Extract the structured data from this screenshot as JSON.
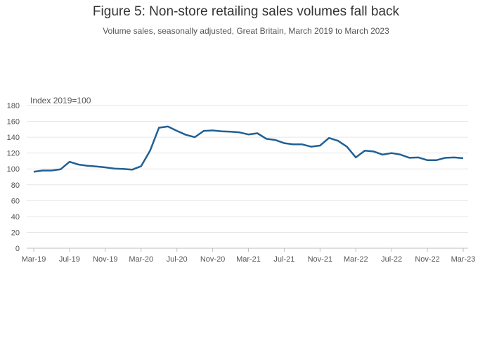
{
  "chart_data": {
    "type": "line",
    "title": "Figure 5: Non-store retailing sales volumes fall back",
    "subtitle": "Volume sales, seasonally adjusted, Great Britain, March 2019 to March 2023",
    "ylabel": "Index 2019=100",
    "xlabel": "",
    "ylim": [
      0,
      180
    ],
    "yticks": [
      0,
      20,
      40,
      60,
      80,
      100,
      120,
      140,
      160,
      180
    ],
    "x_tick_labels": [
      "Mar-19",
      "Jul-19",
      "Nov-19",
      "Mar-20",
      "Jul-20",
      "Nov-20",
      "Mar-21",
      "Jul-21",
      "Nov-21",
      "Mar-22",
      "Jul-22",
      "Nov-22",
      "Mar-23"
    ],
    "grid": true,
    "line_color": "#206095",
    "x": [
      "Mar-19",
      "Apr-19",
      "May-19",
      "Jun-19",
      "Jul-19",
      "Aug-19",
      "Sep-19",
      "Oct-19",
      "Nov-19",
      "Dec-19",
      "Jan-20",
      "Feb-20",
      "Mar-20",
      "Apr-20",
      "May-20",
      "Jun-20",
      "Jul-20",
      "Aug-20",
      "Sep-20",
      "Oct-20",
      "Nov-20",
      "Dec-20",
      "Jan-21",
      "Feb-21",
      "Mar-21",
      "Apr-21",
      "May-21",
      "Jun-21",
      "Jul-21",
      "Aug-21",
      "Sep-21",
      "Oct-21",
      "Nov-21",
      "Dec-21",
      "Jan-22",
      "Feb-22",
      "Mar-22",
      "Apr-22",
      "May-22",
      "Jun-22",
      "Jul-22",
      "Aug-22",
      "Sep-22",
      "Oct-22",
      "Nov-22",
      "Dec-22",
      "Jan-23",
      "Feb-23",
      "Mar-23"
    ],
    "series": [
      {
        "values": [
          96.5,
          98,
          98,
          99.5,
          109,
          105.5,
          104,
          103,
          102,
          100.5,
          100,
          99,
          103.5,
          123,
          152,
          153.5,
          148,
          143,
          140,
          148,
          148.5,
          147.5,
          147,
          146,
          143.5,
          145,
          138,
          136.5,
          132.5,
          131,
          131,
          128,
          129.5,
          139,
          135.5,
          128,
          114.5,
          123,
          122,
          118,
          120,
          118,
          114,
          114.5,
          111,
          111,
          114,
          114.5,
          113.5
        ]
      }
    ]
  }
}
